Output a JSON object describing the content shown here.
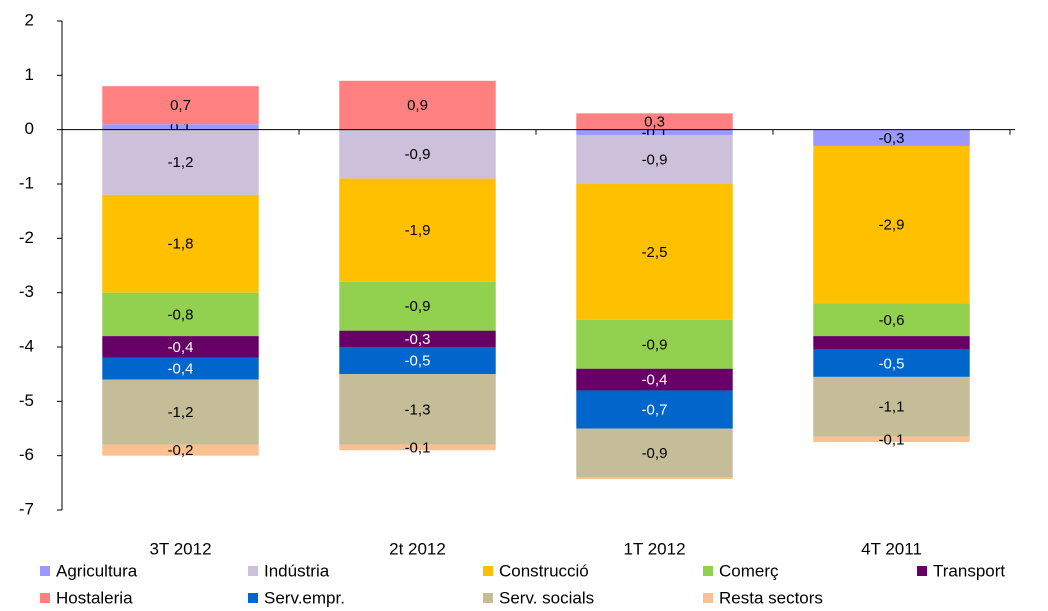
{
  "chart_data": {
    "type": "stacked_bar",
    "categories": [
      "3T 2012",
      "2t 2012",
      "1T 2012",
      "4T 2011"
    ],
    "ylim": [
      -7,
      2
    ],
    "yticks": [
      -7,
      -6,
      -5,
      -4,
      -3,
      -2,
      -1,
      0,
      1,
      2
    ],
    "series": [
      {
        "name": "Agricultura",
        "color": "#9999ff",
        "values": [
          0.1,
          0,
          -0.1,
          -0.3
        ],
        "value_labels": [
          "0,1",
          null,
          "-0,1",
          "-0,3"
        ]
      },
      {
        "name": "Indústria",
        "color": "#ccc0da",
        "values": [
          -1.2,
          -0.9,
          -0.9,
          0
        ],
        "value_labels": [
          "-1,2",
          "-0,9",
          "-0,9",
          null
        ]
      },
      {
        "name": "Construcció",
        "color": "#ffc000",
        "values": [
          -1.8,
          -1.9,
          -2.5,
          -2.9
        ],
        "value_labels": [
          "-1,8",
          "-1,9",
          "-2,5",
          "-2,9"
        ]
      },
      {
        "name": "Comerç",
        "color": "#92d050",
        "values": [
          -0.8,
          -0.9,
          -0.9,
          -0.6
        ],
        "value_labels": [
          "-0,8",
          "-0,9",
          "-0,9",
          "-0,6"
        ]
      },
      {
        "name": "Transport",
        "color": "#660066",
        "values": [
          -0.4,
          -0.3,
          -0.4,
          -0.25
        ],
        "value_labels": [
          "-0,4",
          "-0,3",
          "-0,4",
          null
        ]
      },
      {
        "name": "Hostaleria",
        "color": "#ff8080",
        "values": [
          0.7,
          0.9,
          0.3,
          0
        ],
        "value_labels": [
          "0,7",
          "0,9",
          "0,3",
          null
        ]
      },
      {
        "name": "Serv.empr.",
        "color": "#0066cc",
        "values": [
          -0.4,
          -0.5,
          -0.7,
          -0.5
        ],
        "value_labels": [
          "-0,4",
          "-0,5",
          "-0,7",
          "-0,5"
        ]
      },
      {
        "name": "Serv. socials",
        "color": "#c4bd97",
        "values": [
          -1.2,
          -1.3,
          -0.9,
          -1.1
        ],
        "value_labels": [
          "-1,2",
          "-1,3",
          "-0,9",
          "-1,1"
        ]
      },
      {
        "name": "Resta sectors",
        "color": "#fac090",
        "values": [
          -0.2,
          -0.1,
          -0.03,
          -0.1
        ],
        "value_labels": [
          "-0,2",
          "-0,1",
          null,
          "-0,1"
        ]
      }
    ]
  }
}
